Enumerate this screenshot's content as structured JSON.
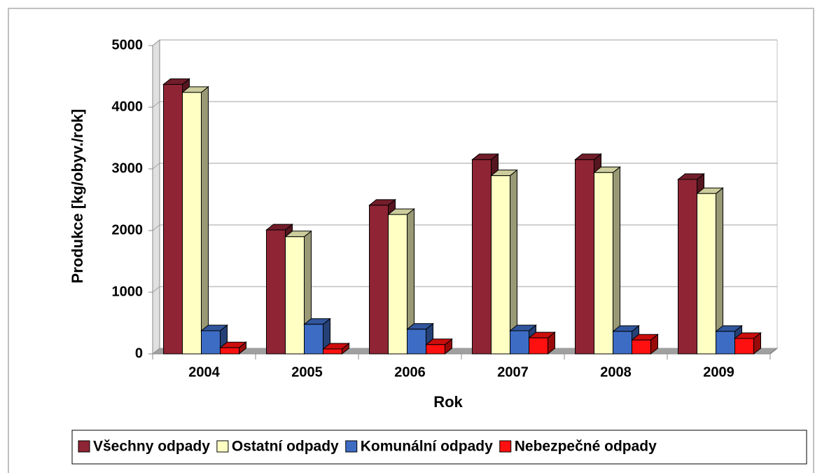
{
  "chart_data": {
    "type": "bar3d",
    "x_label": "Rok",
    "y_label": "Produkce [kg/obyv./rok]",
    "categories": [
      "2004",
      "2005",
      "2006",
      "2007",
      "2008",
      "2009"
    ],
    "series": [
      {
        "name": "Všechny odpady",
        "color": "#8e2434",
        "values": [
          4370,
          2010,
          2410,
          3150,
          3150,
          2830
        ]
      },
      {
        "name": "Ostatní odpady",
        "color": "#ffffc4",
        "values": [
          4240,
          1900,
          2260,
          2890,
          2940,
          2600
        ]
      },
      {
        "name": "Komunální odpady",
        "color": "#3d6cc4",
        "values": [
          375,
          480,
          400,
          375,
          365,
          365
        ]
      },
      {
        "name": "Nebezpečné odpady",
        "color": "#ff1010",
        "values": [
          100,
          80,
          150,
          260,
          225,
          250
        ]
      }
    ],
    "ylim": [
      0,
      5000
    ],
    "yticks": [
      0,
      1000,
      2000,
      3000,
      4000,
      5000
    ],
    "grid": true,
    "legend": "bottom"
  }
}
